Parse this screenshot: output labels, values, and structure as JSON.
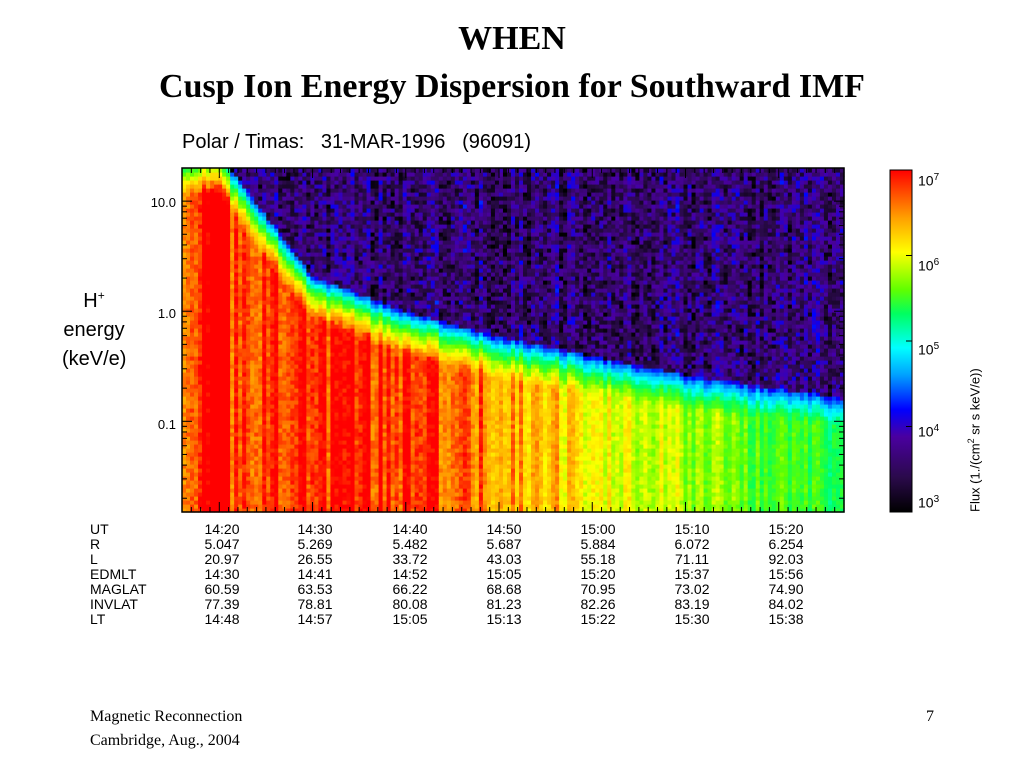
{
  "slide": {
    "title_line1": "WHEN",
    "title_line2": "Cusp Ion Energy Dispersion for Southward IMF",
    "footer_left_line1": "Magnetic Reconnection",
    "footer_left_line2": "Cambridge, Aug., 2004",
    "page_number": "7"
  },
  "chart_data": {
    "type": "heatmap",
    "title": "Polar / Timas:   31-MAR-1996   (96091)",
    "ylabel_species": "H",
    "ylabel_charge": "+",
    "ylabel_line2": "energy",
    "ylabel_line3": "(keV/e)",
    "y_scale": "log",
    "y_range_keV": [
      0.015,
      20
    ],
    "y_ticks": [
      "10.0",
      "1.0",
      "0.1"
    ],
    "x_range_UT": [
      "14:16",
      "15:27"
    ],
    "colorbar": {
      "scale": "log",
      "range": [
        1000,
        10000000
      ],
      "ticks": [
        {
          "base": "10",
          "exp": "7"
        },
        {
          "base": "10",
          "exp": "6"
        },
        {
          "base": "10",
          "exp": "5"
        },
        {
          "base": "10",
          "exp": "4"
        },
        {
          "base": "10",
          "exp": "3"
        }
      ],
      "title_prefix": "Flux (1./(cm",
      "title_exp": "2",
      "title_suffix": " sr s keV/e))",
      "colors": [
        "#000000",
        "#2a0a4a",
        "#4a00a0",
        "#0000ff",
        "#00a0ff",
        "#00ffff",
        "#00ff60",
        "#60ff00",
        "#ffff00",
        "#ffa000",
        "#ff0000"
      ]
    },
    "dispersion_upper_cutoff_keV": [
      {
        "ut": "14:20",
        "keV": 20
      },
      {
        "ut": "14:30",
        "keV": 1.6
      },
      {
        "ut": "14:40",
        "keV": 0.75
      },
      {
        "ut": "14:50",
        "keV": 0.45
      },
      {
        "ut": "15:00",
        "keV": 0.3
      },
      {
        "ut": "15:10",
        "keV": 0.2
      },
      {
        "ut": "15:20",
        "keV": 0.15
      }
    ],
    "orbit_table": {
      "labels": [
        "UT",
        "R",
        "L",
        "EDMLT",
        "MAGLAT",
        "INVLAT",
        "LT"
      ],
      "columns": [
        [
          "14:20",
          "5.047",
          "20.97",
          "14:30",
          "60.59",
          "77.39",
          "14:48"
        ],
        [
          "14:30",
          "5.269",
          "26.55",
          "14:41",
          "63.53",
          "78.81",
          "14:57"
        ],
        [
          "14:40",
          "5.482",
          "33.72",
          "14:52",
          "66.22",
          "80.08",
          "15:05"
        ],
        [
          "14:50",
          "5.687",
          "43.03",
          "15:05",
          "68.68",
          "81.23",
          "15:13"
        ],
        [
          "15:00",
          "5.884",
          "55.18",
          "15:20",
          "70.95",
          "82.26",
          "15:22"
        ],
        [
          "15:10",
          "6.072",
          "71.11",
          "15:37",
          "73.02",
          "83.19",
          "15:30"
        ],
        [
          "15:20",
          "6.254",
          "92.03",
          "15:56",
          "74.90",
          "84.02",
          "15:38"
        ]
      ]
    }
  }
}
